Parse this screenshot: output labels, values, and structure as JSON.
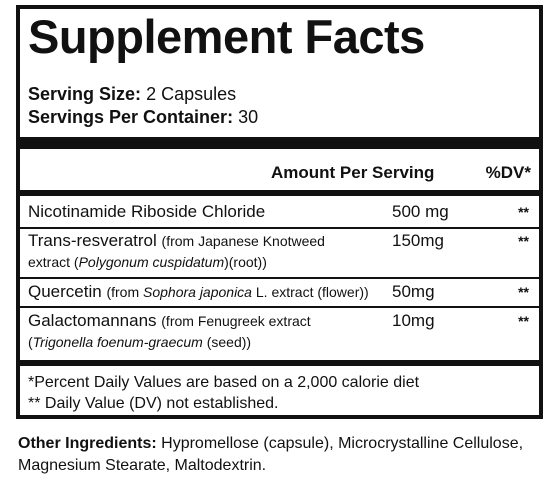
{
  "title": "Supplement Facts",
  "serving_size": {
    "label": "Serving Size:",
    "value": "2 Capsules"
  },
  "servings_per_container": {
    "label": "Servings Per Container:",
    "value": "30"
  },
  "header": {
    "amount": "Amount Per Serving",
    "dv": "%DV*"
  },
  "rows": [
    {
      "name": "Nicotinamide Riboside Chloride",
      "amount": "500 mg",
      "dv": "**"
    },
    {
      "name": "Trans-resveratrol",
      "source_a": "(from Japanese Knotweed",
      "source_b": "extract (",
      "source_italic": "Polygonum cuspidatum",
      "source_c": ")(root))",
      "amount": "150mg",
      "dv": "**"
    },
    {
      "name": "Quercetin",
      "source_a": "(from ",
      "source_italic": "Sophora japonica",
      "source_c": " L. extract (flower))",
      "amount": "50mg",
      "dv": "**"
    },
    {
      "name": "Galactomannans",
      "source_a": "(from Fenugreek extract",
      "source_b": "(",
      "source_italic": "Trigonella foenum-graecum",
      "source_c": " (seed))",
      "amount": "10mg",
      "dv": "**"
    }
  ],
  "footnotes": {
    "dv_note": "*Percent Daily Values are based on a 2,000 calorie diet",
    "not_established": "** Daily Value (DV) not established."
  },
  "other_ingredients": {
    "label": "Other Ingredients:",
    "value": "Hypromellose (capsule), Microcrystalline Cellulose, Magnesium Stearate, Maltodextrin."
  }
}
